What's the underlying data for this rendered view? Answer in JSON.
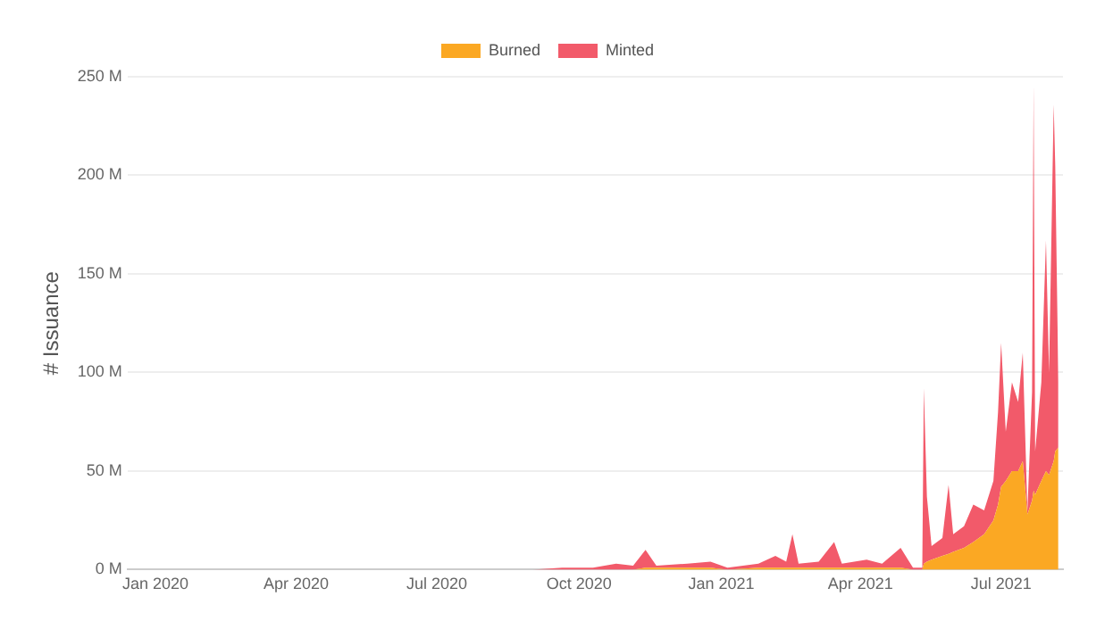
{
  "chart_data": {
    "type": "area",
    "stacked": true,
    "ylabel": "# Issuance",
    "legend": "top",
    "grid": "y",
    "x": [
      "2019-12-20",
      "2020-03-01",
      "2020-06-01",
      "2020-09-01",
      "2020-09-20",
      "2020-10-10",
      "2020-10-25",
      "2020-11-05",
      "2020-11-13",
      "2020-11-20",
      "2020-12-10",
      "2020-12-25",
      "2021-01-05",
      "2021-01-25",
      "2021-02-05",
      "2021-02-12",
      "2021-02-16",
      "2021-02-20",
      "2021-03-05",
      "2021-03-15",
      "2021-03-20",
      "2021-04-05",
      "2021-04-15",
      "2021-04-27",
      "2021-05-05",
      "2021-05-11",
      "2021-05-12",
      "2021-05-14",
      "2021-05-17",
      "2021-05-24",
      "2021-05-28",
      "2021-05-31",
      "2021-06-07",
      "2021-06-13",
      "2021-06-20",
      "2021-06-26",
      "2021-06-29",
      "2021-07-01",
      "2021-07-04",
      "2021-07-08",
      "2021-07-12",
      "2021-07-15",
      "2021-07-18",
      "2021-07-21",
      "2021-07-22",
      "2021-07-23",
      "2021-07-27",
      "2021-07-30",
      "2021-08-01",
      "2021-08-04",
      "2021-08-05",
      "2021-08-07"
    ],
    "series": [
      {
        "name": "Burned",
        "color": "#fba823",
        "values": [
          0,
          0,
          0,
          0,
          0,
          0,
          0,
          0,
          1,
          1,
          1,
          1,
          0,
          1,
          1,
          1,
          1,
          1,
          1,
          1,
          1,
          1,
          1,
          1,
          0,
          0,
          3,
          4,
          5,
          7,
          8,
          9,
          11,
          14,
          18,
          25,
          33,
          42,
          45,
          50,
          50,
          55,
          28,
          35,
          40,
          38,
          45,
          50,
          48,
          55,
          60,
          62
        ]
      },
      {
        "name": "Minted",
        "color": "#f25a6a",
        "values": [
          0,
          0,
          0,
          0,
          1,
          1,
          3,
          2,
          9,
          1,
          2,
          3,
          1,
          2,
          6,
          3,
          17,
          2,
          3,
          13,
          2,
          4,
          2,
          10,
          1,
          1,
          89,
          33,
          7,
          9,
          35,
          9,
          11,
          19,
          12,
          20,
          47,
          73,
          25,
          45,
          35,
          55,
          2,
          55,
          206,
          22,
          50,
          117,
          52,
          181,
          145,
          33
        ]
      }
    ],
    "xlim": [
      "2019-12-14",
      "2021-08-10"
    ],
    "xticks": [
      {
        "value": "2020-01-01",
        "label": "Jan 2020"
      },
      {
        "value": "2020-04-01",
        "label": "Apr 2020"
      },
      {
        "value": "2020-07-01",
        "label": "Jul 2020"
      },
      {
        "value": "2020-10-01",
        "label": "Oct 2020"
      },
      {
        "value": "2021-01-01",
        "label": "Jan 2021"
      },
      {
        "value": "2021-04-01",
        "label": "Apr 2021"
      },
      {
        "value": "2021-07-01",
        "label": "Jul 2021"
      }
    ],
    "ylim": [
      0,
      250
    ],
    "yticks": [
      {
        "value": 0,
        "label": "0 M"
      },
      {
        "value": 50,
        "label": "50 M"
      },
      {
        "value": 100,
        "label": "100 M"
      },
      {
        "value": 150,
        "label": "150 M"
      },
      {
        "value": 200,
        "label": "200 M"
      },
      {
        "value": 250,
        "label": "250 M"
      }
    ]
  }
}
